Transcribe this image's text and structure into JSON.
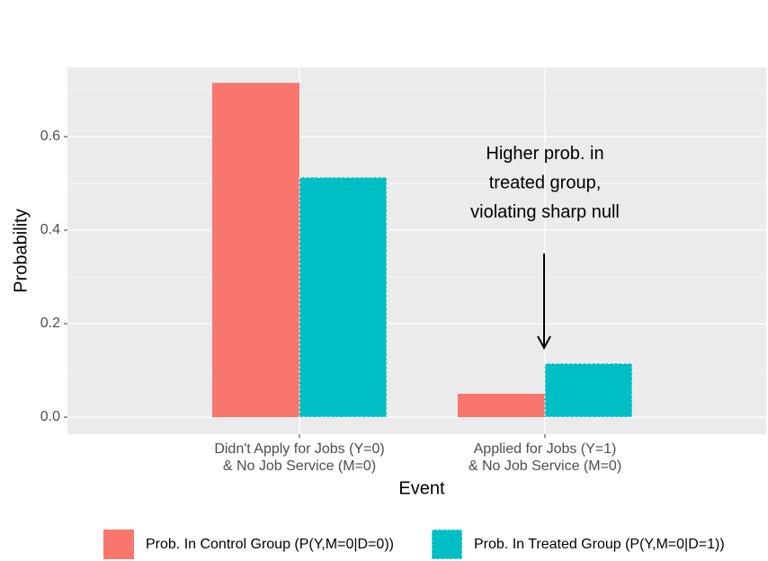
{
  "chart_data": {
    "type": "bar",
    "categories": [
      "Didn't Apply for Jobs (Y=0)\n& No Job Service (M=0)",
      "Applied for Jobs (Y=1)\n& No Job Service (M=0)"
    ],
    "series": [
      {
        "name": "Prob. In Control Group (P(Y,M=0|D=0))",
        "color": "#F8766D",
        "values": [
          0.715,
          0.05
        ]
      },
      {
        "name": "Prob. In Treated Group (P(Y,M=0|D=1))",
        "color": "#00BFC4",
        "values": [
          0.513,
          0.115
        ]
      }
    ],
    "xlabel": "Event",
    "ylabel": "Probability",
    "annotation": "Higher prob. in\ntreated group,\nviolating sharp null",
    "ylim": [
      -0.0365,
      0.748
    ],
    "yticks": [
      {
        "value": 0,
        "label": "0.0"
      },
      0.2,
      0.4,
      0.6
    ],
    "grid": true,
    "legend": "bottom"
  }
}
